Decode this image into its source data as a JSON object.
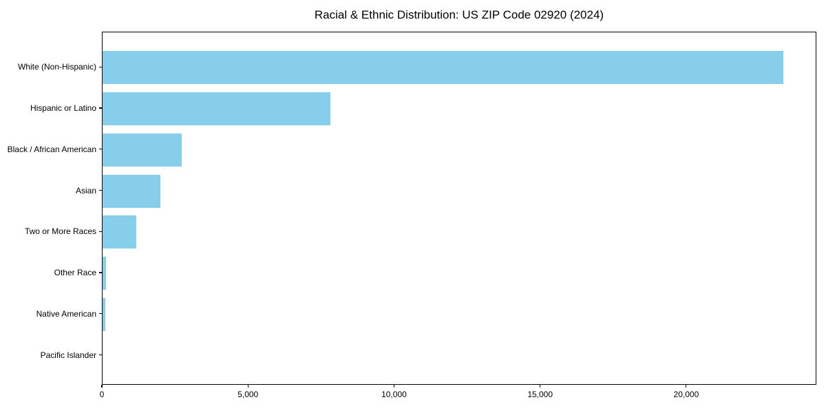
{
  "chart_data": {
    "type": "bar",
    "orientation": "horizontal",
    "title": "Racial & Ethnic Distribution: US ZIP Code 02920 (2024)",
    "categories": [
      "White (Non-Hispanic)",
      "Hispanic or Latino",
      "Black / African American",
      "Asian",
      "Two or More Races",
      "Other Race",
      "Native American",
      "Pacific Islander"
    ],
    "values": [
      23290,
      7810,
      2710,
      1970,
      1160,
      115,
      90,
      0
    ],
    "xlabel": "",
    "ylabel": "",
    "xlim": [
      0,
      24455
    ],
    "xticks": [
      0,
      5000,
      10000,
      15000,
      20000
    ],
    "xtick_labels": [
      "0",
      "5,000",
      "10,000",
      "15,000",
      "20,000"
    ],
    "bar_color": "#87CEEB",
    "axis_color": "#000000",
    "grid": false,
    "legend": null
  }
}
